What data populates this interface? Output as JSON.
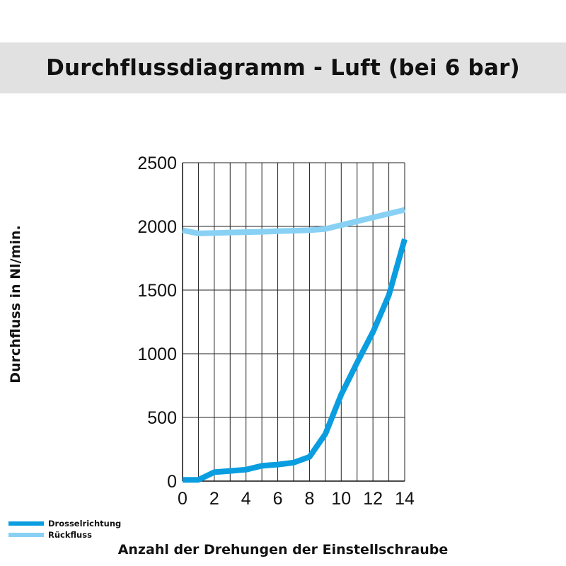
{
  "chart_data": {
    "type": "line",
    "title": "Durchflussdiagramm - Luft (bei 6 bar)",
    "xlabel": "Anzahl der Drehungen der Einstellschraube",
    "ylabel": "Durchfluss in Nl/min.",
    "xlim": [
      0,
      14
    ],
    "ylim": [
      0,
      2500
    ],
    "xticks": [
      0,
      2,
      4,
      6,
      8,
      10,
      12,
      14
    ],
    "yticks": [
      0,
      500,
      1000,
      1500,
      2000,
      2500
    ],
    "grid": true,
    "legend_position": "bottom-left",
    "series": [
      {
        "name": "Drosselrichtung",
        "color": "#0a9de0",
        "x": [
          0,
          1,
          2,
          3,
          4,
          5,
          6,
          7,
          8,
          9,
          10,
          11,
          12,
          13,
          14
        ],
        "y": [
          10,
          10,
          70,
          80,
          90,
          120,
          130,
          145,
          190,
          370,
          680,
          930,
          1170,
          1460,
          1900
        ]
      },
      {
        "name": "Rückfluss",
        "color": "#88d1f4",
        "x": [
          0,
          1,
          2,
          3,
          4,
          5,
          6,
          7,
          8,
          9,
          10,
          11,
          12,
          13,
          14
        ],
        "y": [
          1970,
          1945,
          1948,
          1952,
          1955,
          1958,
          1962,
          1966,
          1970,
          1980,
          2010,
          2040,
          2070,
          2100,
          2130
        ]
      }
    ]
  }
}
